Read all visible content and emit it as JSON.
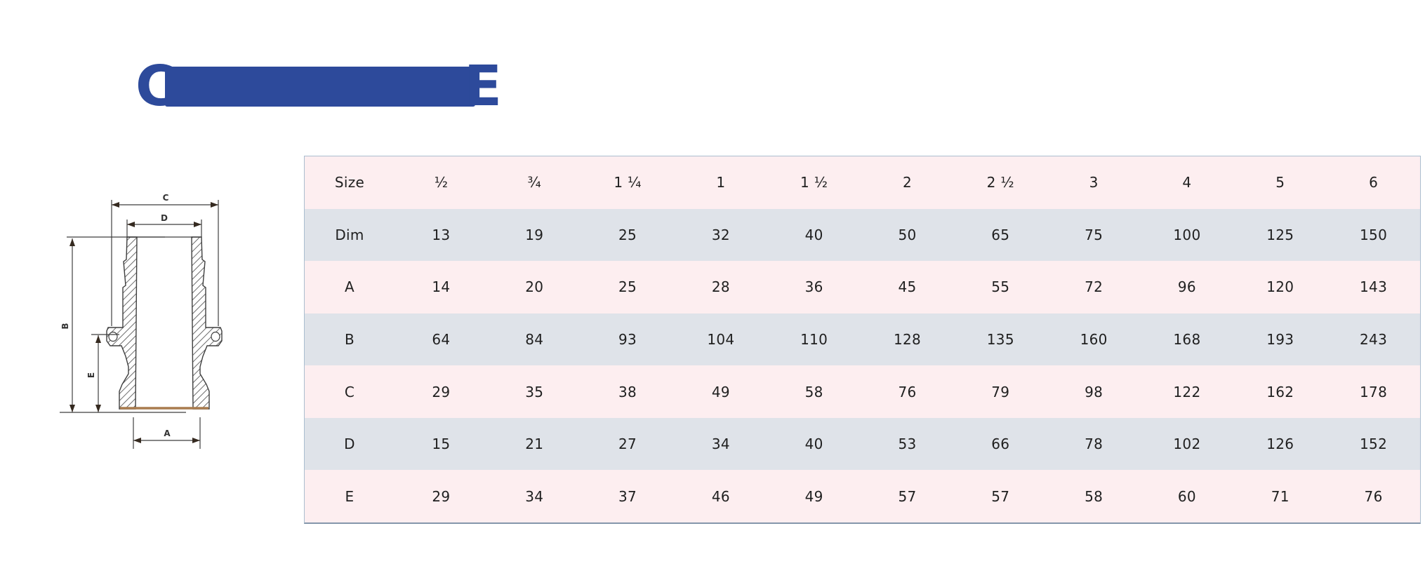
{
  "title": {
    "left_letter": "C",
    "right_letter": "E",
    "color": "#2d4a9b"
  },
  "diagram": {
    "description": "cross-section drawing of hose-tail camlock adapter",
    "dim_labels": {
      "top_width": "C",
      "inner_width": "D",
      "total_height": "B",
      "lower_height": "E",
      "bottom_width": "A"
    }
  },
  "table": {
    "columns": [
      "Size",
      "½",
      "¾",
      "1 ¼",
      "1",
      "1 ½",
      "2",
      "2 ½",
      "3",
      "4",
      "5",
      "6"
    ],
    "rows": [
      {
        "label": "Dim",
        "values": [
          "13",
          "19",
          "25",
          "32",
          "40",
          "50",
          "65",
          "75",
          "100",
          "125",
          "150"
        ]
      },
      {
        "label": "A",
        "values": [
          "14",
          "20",
          "25",
          "28",
          "36",
          "45",
          "55",
          "72",
          "96",
          "120",
          "143"
        ]
      },
      {
        "label": "B",
        "values": [
          "64",
          "84",
          "93",
          "104",
          "110",
          "128",
          "135",
          "160",
          "168",
          "193",
          "243"
        ]
      },
      {
        "label": "C",
        "values": [
          "29",
          "35",
          "38",
          "49",
          "58",
          "76",
          "79",
          "98",
          "122",
          "162",
          "178"
        ]
      },
      {
        "label": "D",
        "values": [
          "15",
          "21",
          "27",
          "34",
          "40",
          "53",
          "66",
          "78",
          "102",
          "126",
          "152"
        ]
      },
      {
        "label": "E",
        "values": [
          "29",
          "34",
          "37",
          "46",
          "49",
          "57",
          "57",
          "58",
          "60",
          "71",
          "76"
        ]
      }
    ],
    "colors": {
      "row_pink": "#fdeef0",
      "row_gray": "#dfe3e9",
      "border": "#aabdcf"
    }
  }
}
